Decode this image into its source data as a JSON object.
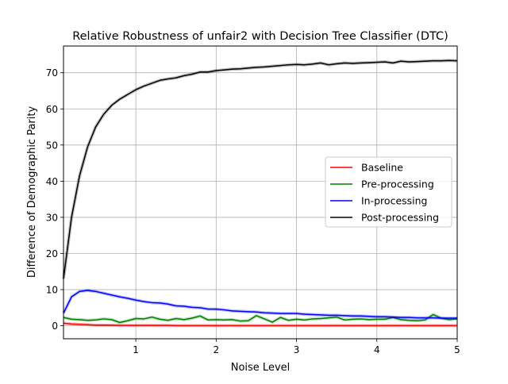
{
  "chart_data": {
    "type": "line",
    "title": "Relative Robustness of unfair2 with Decision Tree Classifier (DTC)",
    "xlabel": "Noise Level",
    "ylabel": "Difference of Demographic Parity",
    "xlim": [
      0.1,
      5.0
    ],
    "ylim": [
      -3.6,
      77.4
    ],
    "x_ticks": [
      1,
      2,
      3,
      4,
      5
    ],
    "y_ticks": [
      0,
      10,
      20,
      30,
      40,
      50,
      60,
      70
    ],
    "grid": true,
    "legend_position": "center-right",
    "x": [
      0.1,
      0.2,
      0.3,
      0.4,
      0.5,
      0.6,
      0.7,
      0.8,
      0.9,
      1.0,
      1.1,
      1.2,
      1.3,
      1.4,
      1.5,
      1.6,
      1.7,
      1.8,
      1.9,
      2.0,
      2.1,
      2.2,
      2.3,
      2.4,
      2.5,
      2.6,
      2.7,
      2.8,
      2.9,
      3.0,
      3.1,
      3.2,
      3.3,
      3.4,
      3.5,
      3.6,
      3.7,
      3.8,
      3.9,
      4.0,
      4.1,
      4.2,
      4.3,
      4.4,
      4.5,
      4.6,
      4.7,
      4.8,
      4.9,
      5.0
    ],
    "series": [
      {
        "name": "Baseline",
        "color": "#ff0000",
        "values": [
          0.7,
          0.5,
          0.4,
          0.3,
          0.2,
          0.2,
          0.15,
          0.1,
          0.1,
          0.1,
          0.1,
          0.1,
          0.1,
          0.1,
          0.05,
          0.05,
          0.05,
          0.05,
          0.05,
          0.05,
          0.05,
          0.05,
          0.05,
          0.05,
          0.05,
          0.05,
          0.05,
          0.05,
          0.05,
          0.05,
          0.05,
          0.05,
          0.05,
          0.05,
          0.05,
          0.05,
          0.05,
          0.05,
          0.05,
          0.05,
          0.05,
          0.05,
          0.05,
          0.05,
          0.05,
          0.05,
          0.05,
          0.05,
          0.05,
          0.05
        ]
      },
      {
        "name": "Pre-processing",
        "color": "#008000",
        "values": [
          2.3,
          1.8,
          1.7,
          1.5,
          1.6,
          1.9,
          1.7,
          0.9,
          1.4,
          2.0,
          1.9,
          2.4,
          1.8,
          1.5,
          2.0,
          1.7,
          2.1,
          2.7,
          1.6,
          1.7,
          1.6,
          1.7,
          1.3,
          1.4,
          2.8,
          1.9,
          1.0,
          2.3,
          1.5,
          1.8,
          1.6,
          1.9,
          2.0,
          2.2,
          2.4,
          1.6,
          1.8,
          1.9,
          1.7,
          1.8,
          1.8,
          2.3,
          1.7,
          1.5,
          1.4,
          1.6,
          3.1,
          2.1,
          1.7,
          1.9
        ]
      },
      {
        "name": "In-processing",
        "color": "#0000ff",
        "values": [
          3.5,
          8.0,
          9.5,
          9.8,
          9.5,
          9.0,
          8.5,
          8.0,
          7.6,
          7.1,
          6.7,
          6.4,
          6.3,
          6.0,
          5.5,
          5.4,
          5.1,
          5.0,
          4.6,
          4.6,
          4.4,
          4.1,
          4.0,
          3.9,
          3.8,
          3.6,
          3.5,
          3.4,
          3.4,
          3.4,
          3.2,
          3.1,
          3.0,
          2.9,
          2.9,
          2.8,
          2.7,
          2.7,
          2.6,
          2.5,
          2.5,
          2.4,
          2.3,
          2.3,
          2.2,
          2.2,
          2.2,
          2.1,
          2.1,
          2.1
        ]
      },
      {
        "name": "Post-processing",
        "color": "#000000",
        "values": [
          13.0,
          30.0,
          41.5,
          49.5,
          55.0,
          58.5,
          61.0,
          62.7,
          64.0,
          65.3,
          66.3,
          67.1,
          67.9,
          68.3,
          68.6,
          69.2,
          69.6,
          70.2,
          70.2,
          70.6,
          70.8,
          71.0,
          71.1,
          71.3,
          71.5,
          71.6,
          71.8,
          72.0,
          72.2,
          72.3,
          72.2,
          72.4,
          72.7,
          72.2,
          72.5,
          72.7,
          72.6,
          72.7,
          72.8,
          72.9,
          73.0,
          72.7,
          73.2,
          73.0,
          73.1,
          73.2,
          73.3,
          73.3,
          73.4,
          73.3
        ]
      }
    ]
  }
}
